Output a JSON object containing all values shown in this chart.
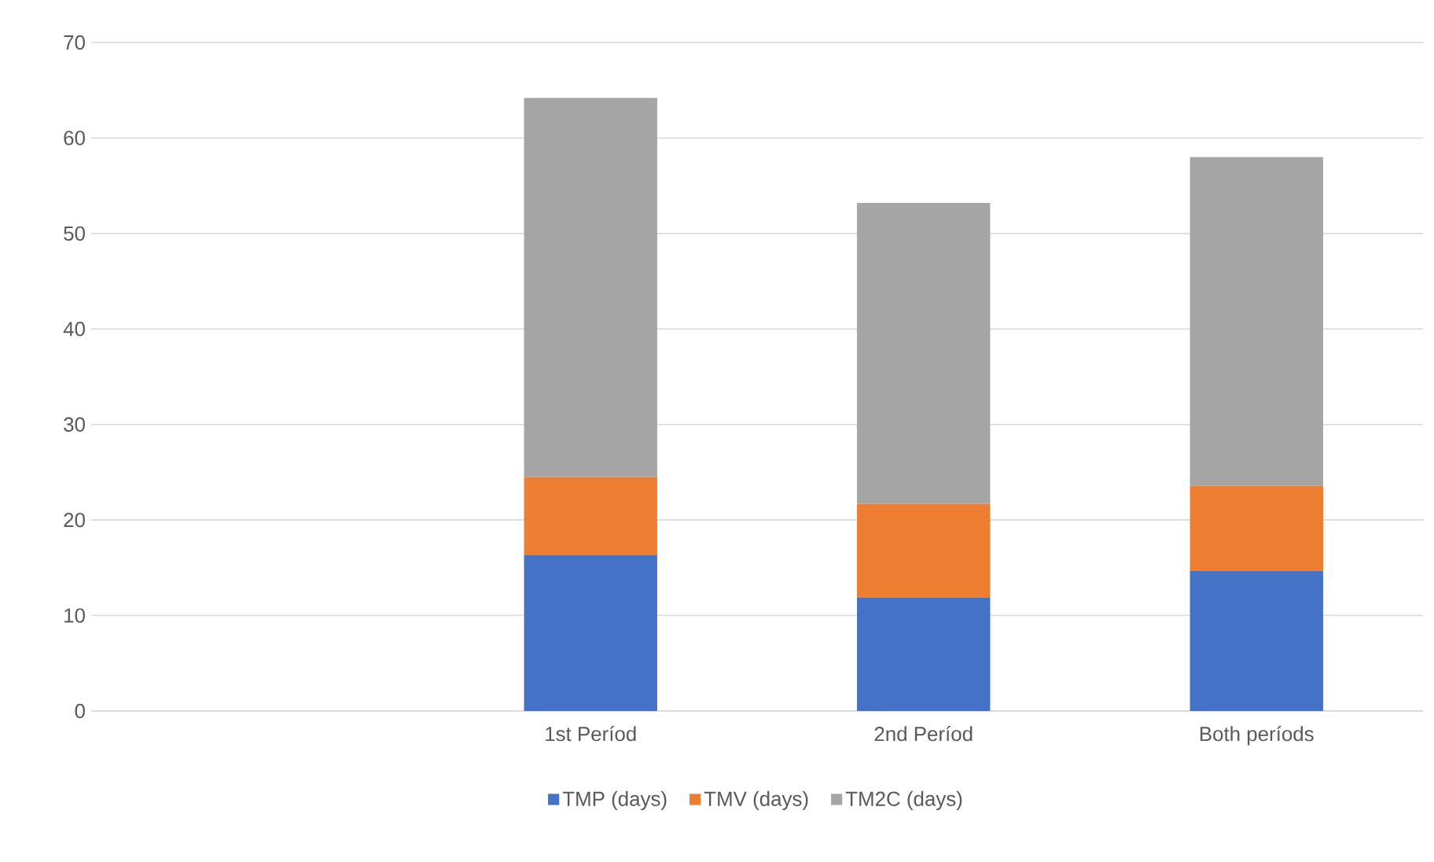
{
  "chart_data": {
    "type": "bar",
    "stacked": true,
    "categories": [
      null,
      "1st Períod",
      "2nd Períod",
      "Both períods"
    ],
    "series": [
      {
        "name": "TMP (days)",
        "color": "#4472c4",
        "values": [
          null,
          16.3,
          11.9,
          14.7
        ]
      },
      {
        "name": "TMV (days)",
        "color": "#ed7d31",
        "values": [
          null,
          8.2,
          9.8,
          8.9
        ]
      },
      {
        "name": "TM2C (days)",
        "color": "#a5a5a5",
        "values": [
          null,
          39.7,
          31.5,
          34.4
        ]
      }
    ],
    "ylim": [
      0,
      70
    ],
    "yticks": [
      0,
      10,
      20,
      30,
      40,
      50,
      60,
      70
    ],
    "grid": "y",
    "legend": "bottom"
  }
}
